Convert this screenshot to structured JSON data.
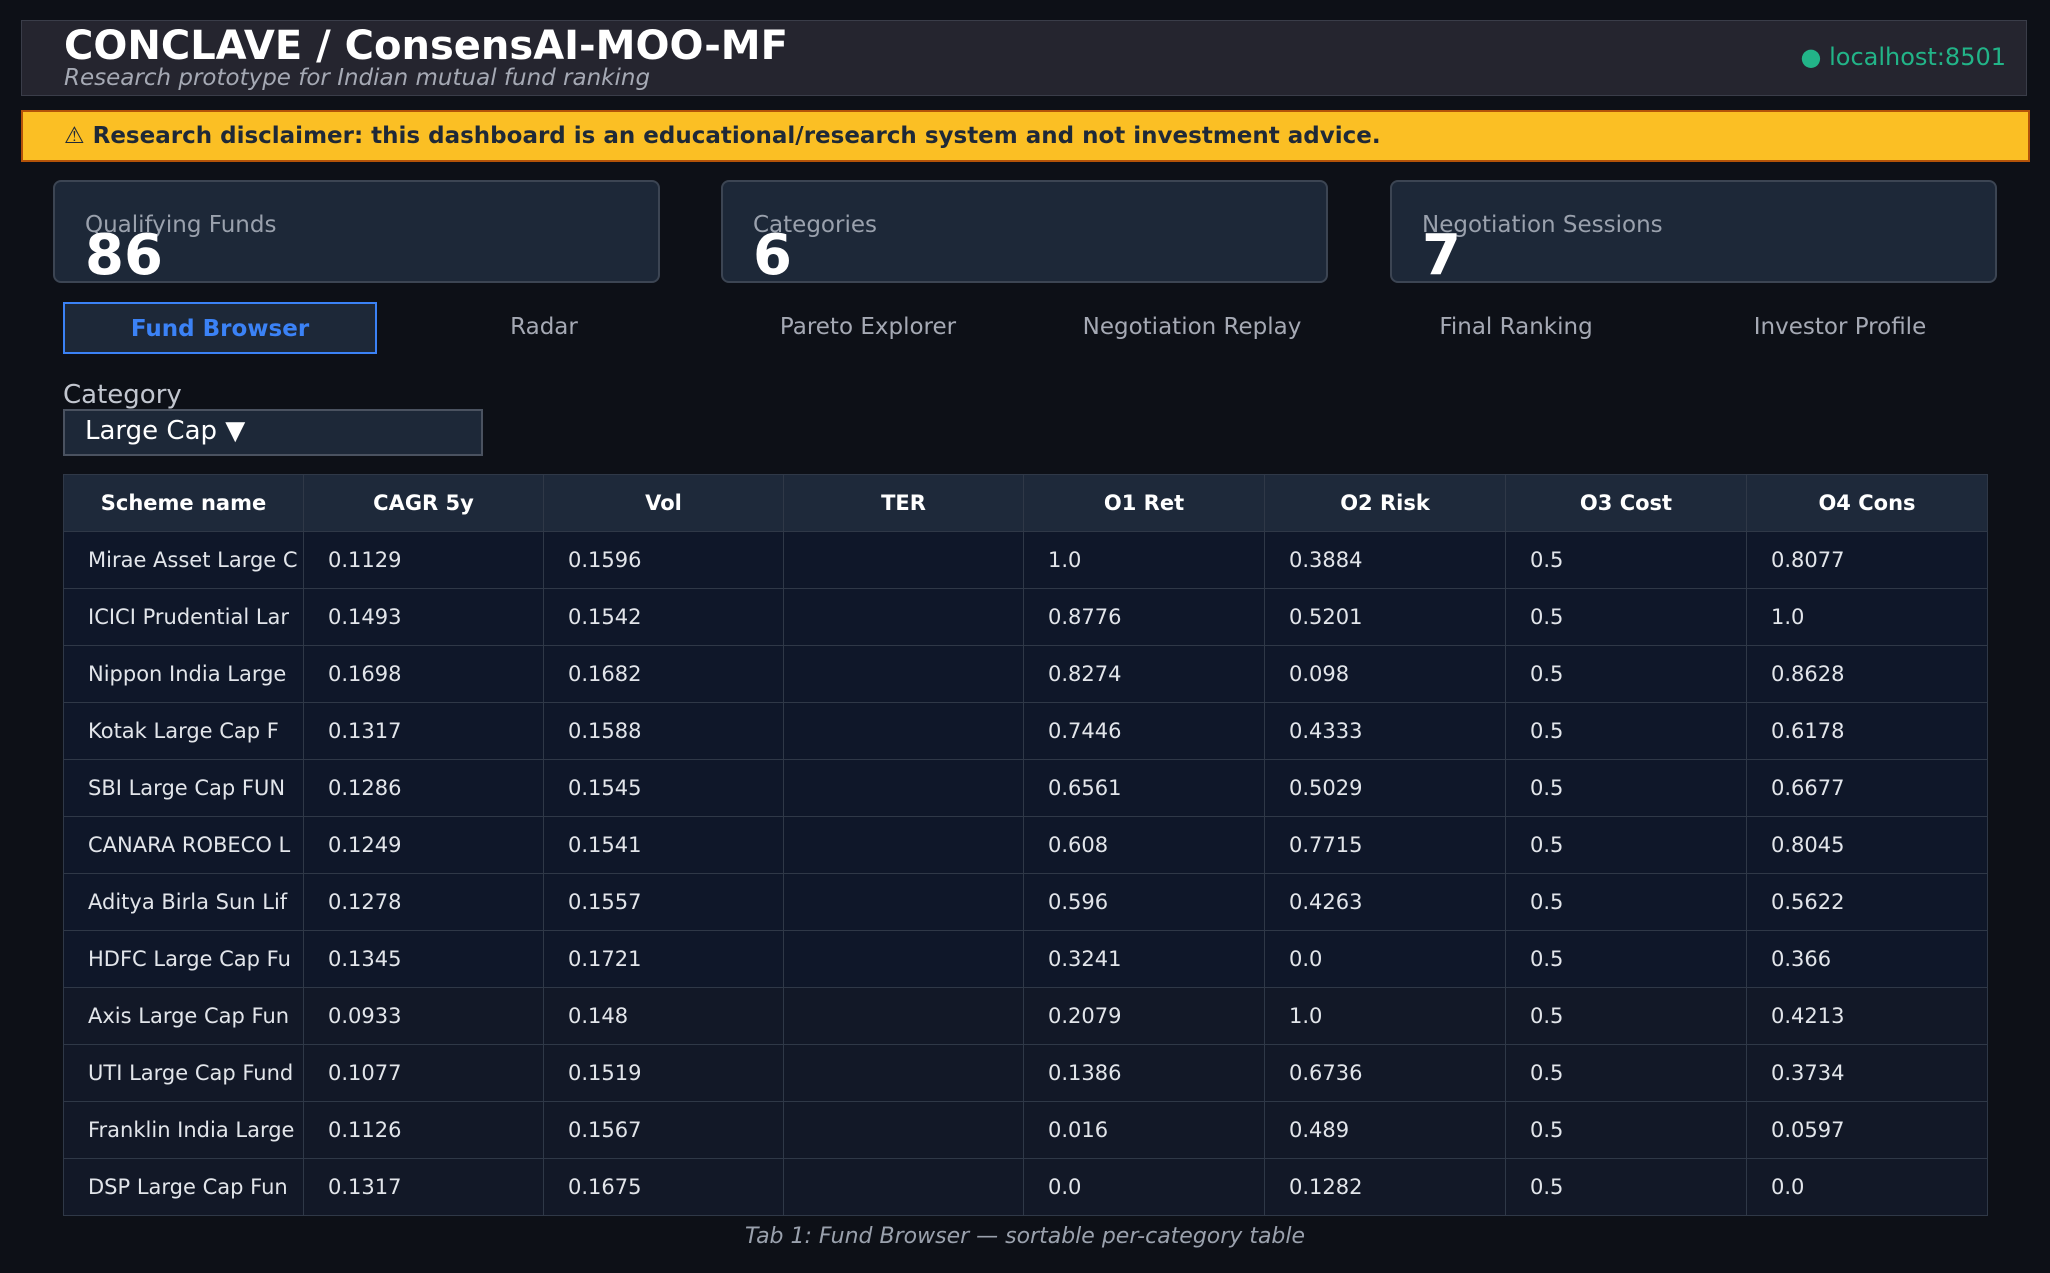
{
  "header": {
    "title": "CONCLAVE / ConsensAI-MOO-MF",
    "subtitle": "Research prototype for Indian mutual fund ranking",
    "server_status": "● localhost:8501",
    "status_color": "#22b488"
  },
  "disclaimer": "⚠ Research disclaimer: this dashboard is an educational/research system and not investment advice.",
  "metrics": [
    {
      "label": "Qualifying Funds",
      "value": "86"
    },
    {
      "label": "Categories",
      "value": "6"
    },
    {
      "label": "Negotiation Sessions",
      "value": "7"
    }
  ],
  "tabs": [
    {
      "label": "Fund Browser",
      "active": true
    },
    {
      "label": "Radar"
    },
    {
      "label": "Pareto Explorer"
    },
    {
      "label": "Negotiation Replay"
    },
    {
      "label": "Final Ranking"
    },
    {
      "label": "Investor Profile"
    }
  ],
  "category": {
    "label": "Category",
    "selected": "Large Cap ▼"
  },
  "table": {
    "columns": [
      "Scheme name",
      "CAGR 5y",
      "Vol",
      "TER",
      "O1 Ret",
      "O2 Risk",
      "O3 Cost",
      "O4 Cons"
    ],
    "rows": [
      [
        "Mirae Asset Large C",
        "0.1129",
        "0.1596",
        "",
        "1.0",
        "0.3884",
        "0.5",
        "0.8077"
      ],
      [
        "ICICI Prudential Lar",
        "0.1493",
        "0.1542",
        "",
        "0.8776",
        "0.5201",
        "0.5",
        "1.0"
      ],
      [
        "Nippon India Large",
        "0.1698",
        "0.1682",
        "",
        "0.8274",
        "0.098",
        "0.5",
        "0.8628"
      ],
      [
        "Kotak Large Cap  F",
        "0.1317",
        "0.1588",
        "",
        "0.7446",
        "0.4333",
        "0.5",
        "0.6178"
      ],
      [
        "SBI Large Cap FUN",
        "0.1286",
        "0.1545",
        "",
        "0.6561",
        "0.5029",
        "0.5",
        "0.6677"
      ],
      [
        "CANARA ROBECO L",
        "0.1249",
        "0.1541",
        "",
        "0.608",
        "0.7715",
        "0.5",
        "0.8045"
      ],
      [
        "Aditya Birla Sun Lif",
        "0.1278",
        "0.1557",
        "",
        "0.596",
        "0.4263",
        "0.5",
        "0.5622"
      ],
      [
        "HDFC Large Cap Fu",
        "0.1345",
        "0.1721",
        "",
        "0.3241",
        "0.0",
        "0.5",
        "0.366"
      ],
      [
        "Axis Large Cap Fun",
        "0.0933",
        "0.148",
        "",
        "0.2079",
        "1.0",
        "0.5",
        "0.4213"
      ],
      [
        "UTI Large Cap Fund",
        "0.1077",
        "0.1519",
        "",
        "0.1386",
        "0.6736",
        "0.5",
        "0.3734"
      ],
      [
        "Franklin India Large",
        "0.1126",
        "0.1567",
        "",
        "0.016",
        "0.489",
        "0.5",
        "0.0597"
      ],
      [
        "DSP Large Cap Fun",
        "0.1317",
        "0.1675",
        "",
        "0.0",
        "0.1282",
        "0.5",
        "0.0"
      ]
    ]
  },
  "caption": "Tab 1: Fund Browser — sortable per-category table"
}
